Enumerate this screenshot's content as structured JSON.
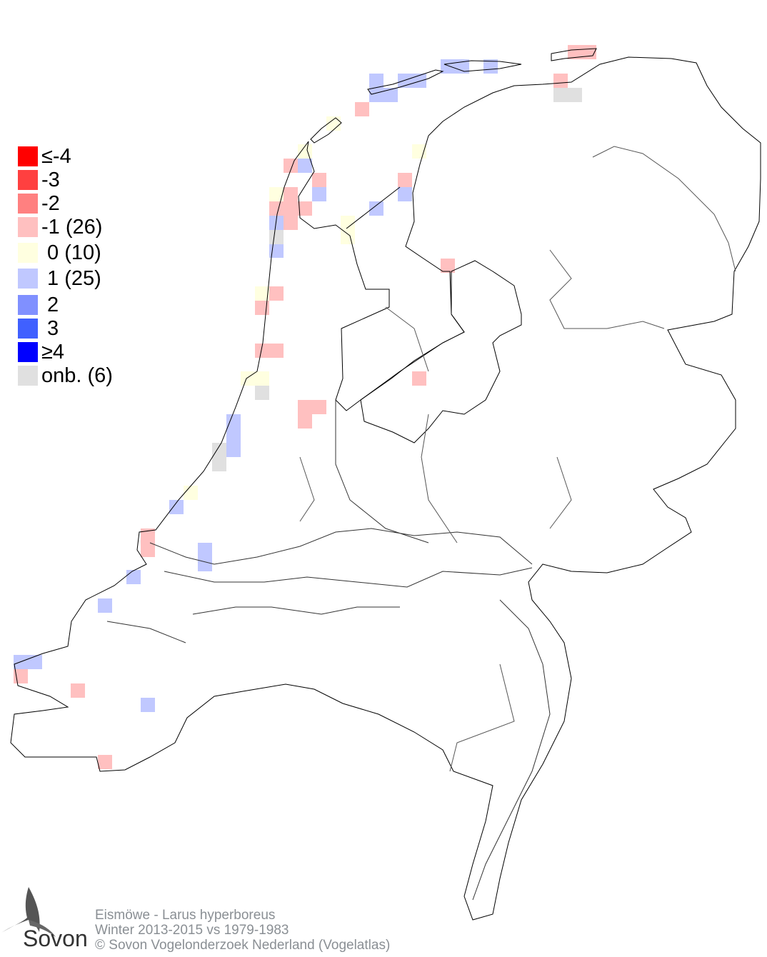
{
  "legend": {
    "items": [
      {
        "label": "≤-4",
        "color": "#ff0000"
      },
      {
        "label": "-3",
        "color": "#ff4040"
      },
      {
        "label": "-2",
        "color": "#ff8080"
      },
      {
        "label": "-1 (26)",
        "color": "#ffc0c0"
      },
      {
        "label": " 0 (10)",
        "color": "#ffffe0"
      },
      {
        "label": " 1 (25)",
        "color": "#c0c8ff"
      },
      {
        "label": " 2",
        "color": "#8090ff"
      },
      {
        "label": " 3",
        "color": "#4060ff"
      },
      {
        "label": "≥4",
        "color": "#0000ff"
      },
      {
        "label": "onb. (6)",
        "color": "#e0e0e0"
      }
    ]
  },
  "footer": {
    "line1": "Eismöwe - Larus hyperboreus",
    "line2": "Winter 2013-2015 vs 1979-1983",
    "line3": "© Sovon Vogelonderzoek Nederland (Vogelatlas)"
  },
  "logo": {
    "text": "Sovon"
  }
}
